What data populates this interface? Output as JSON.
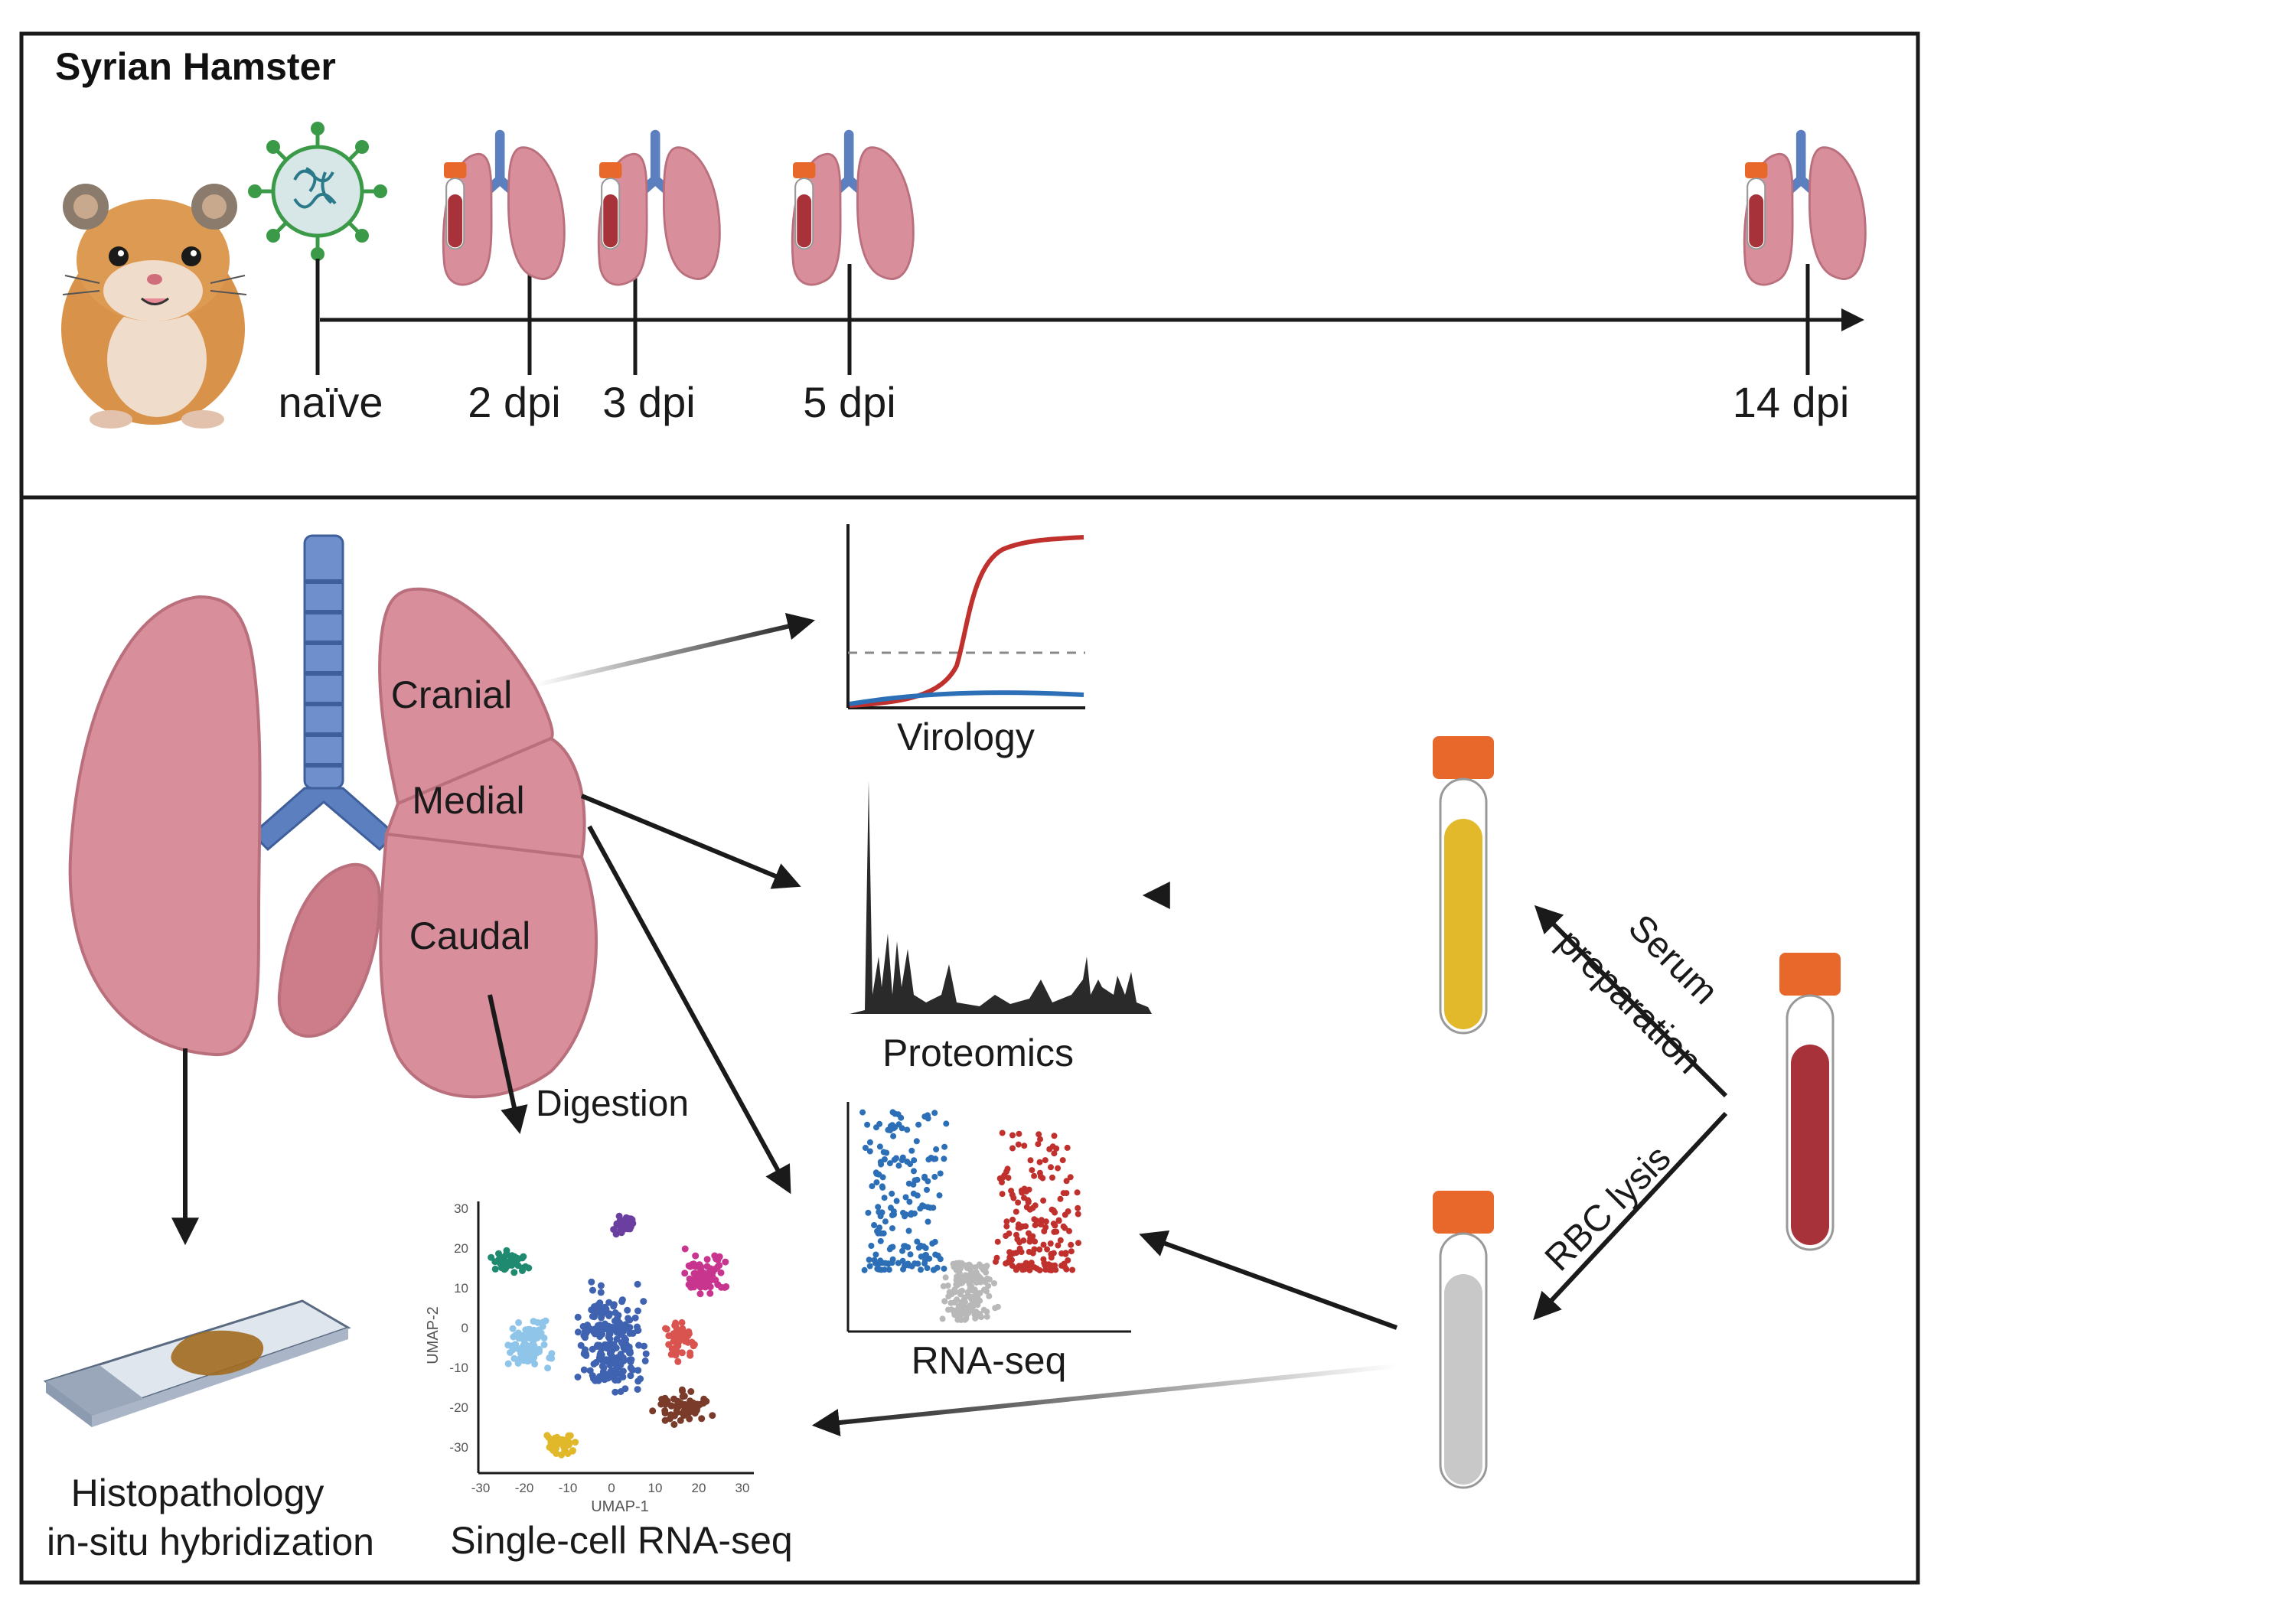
{
  "top_panel": {
    "title": "Syrian Hamster",
    "timepoints": [
      {
        "label": "naïve"
      },
      {
        "label": "2 dpi"
      },
      {
        "label": "3 dpi"
      },
      {
        "label": "5 dpi"
      },
      {
        "label": "14 dpi"
      }
    ]
  },
  "lung": {
    "lobes": [
      "Cranial",
      "Medial",
      "Caudal"
    ]
  },
  "assays": {
    "virology": "Virology",
    "proteomics": "Proteomics",
    "rnaseq": "RNA-seq",
    "histopathology_line1": "Histopathology",
    "histopathology_line2": "in-situ hybridization",
    "scrnaseq": "Single-cell RNA-seq",
    "digestion": "Digestion"
  },
  "blood": {
    "serum_line1": "Serum",
    "serum_line2": "preparation",
    "rbc": "RBC lysis"
  },
  "umap": {
    "xlabel": "UMAP-1",
    "ylabel": "UMAP-2",
    "x_ticks": [
      "-30",
      "-20",
      "-10",
      "0",
      "10",
      "20",
      "30"
    ],
    "y_ticks": [
      "30",
      "20",
      "10",
      "0",
      "-10",
      "-20",
      "-30"
    ]
  },
  "colors": {
    "lung": "#d98f9b",
    "trachea": "#5b7fbf",
    "virus_green": "#3a9a47",
    "blood": "#a8323a",
    "serum": "#e2b92a",
    "pbmc": "#c8c8c8",
    "cap": "#e8672b"
  }
}
